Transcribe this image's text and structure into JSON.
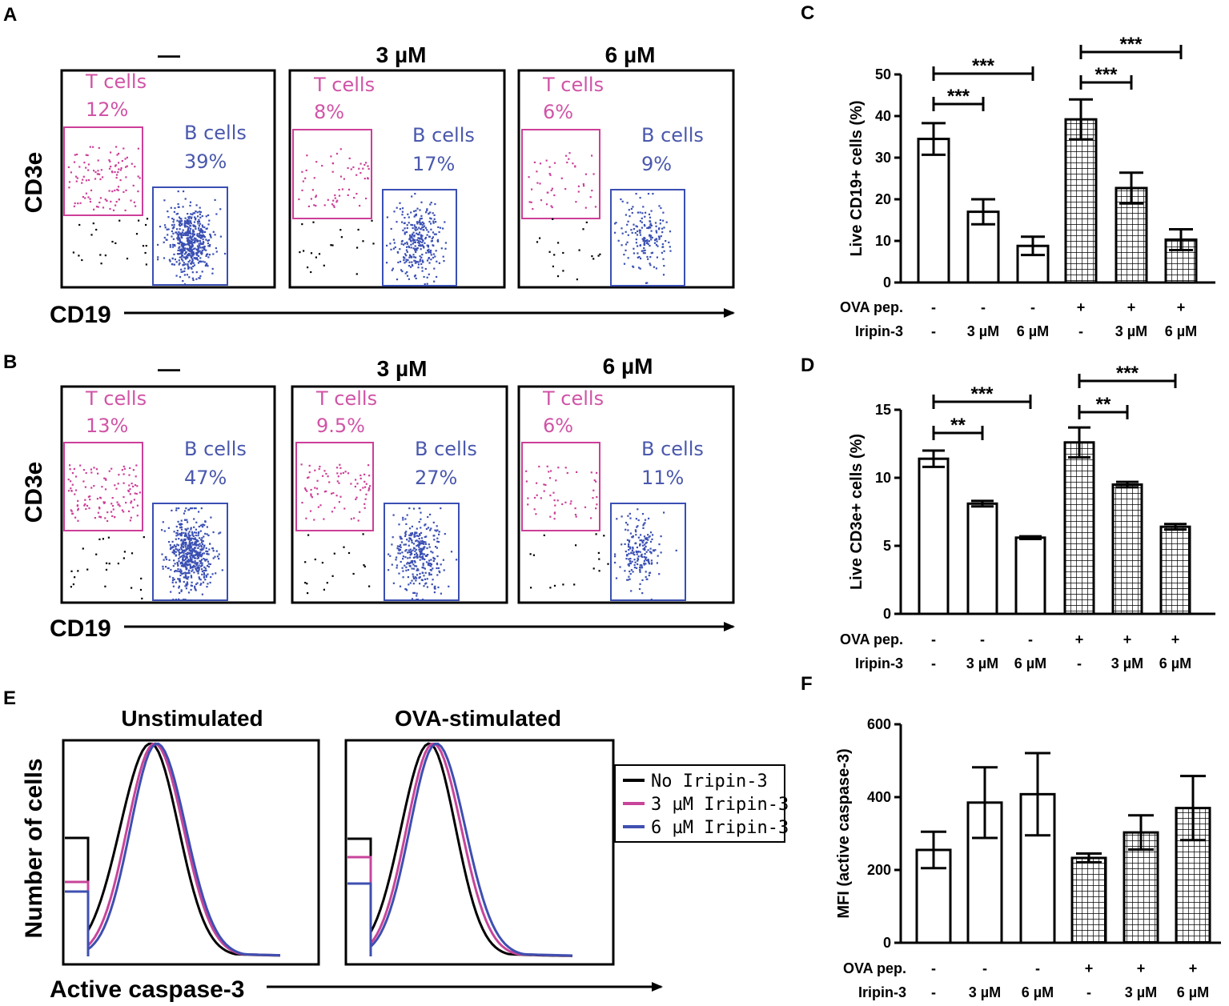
{
  "panel_letters": {
    "A": "A",
    "B": "B",
    "C": "C",
    "D": "D",
    "E": "E",
    "F": "F"
  },
  "flow": {
    "y_label": "CD3e",
    "x_label": "CD19",
    "t_label": "T cells",
    "b_label": "B cells",
    "titles": [
      "—",
      "3 µM",
      "6 µM"
    ],
    "rowA": {
      "t_pct": [
        "12%",
        "8%",
        "6%"
      ],
      "b_pct": [
        "39%",
        "17%",
        "9%"
      ]
    },
    "rowB": {
      "t_pct": [
        "13%",
        "9.5%",
        "6%"
      ],
      "b_pct": [
        "47%",
        "27%",
        "11%"
      ]
    }
  },
  "hist": {
    "titles": [
      "Unstimulated",
      "OVA-stimulated"
    ],
    "y_label": "Number of cells",
    "x_label": "Active caspase-3",
    "legend": [
      "No Iripin-3",
      "3 µM Iripin-3",
      "6 µM Iripin-3"
    ],
    "colors": [
      "#000000",
      "#c8449a",
      "#3f4fb0"
    ]
  },
  "colors": {
    "t_gate": "#cc3f98",
    "b_gate": "#3a4fb3",
    "b_text": "#4a58ad",
    "t_text": "#d054a6"
  },
  "chart_data": [
    {
      "type": "bar",
      "panel": "C",
      "ylabel": "Live CD19+ cells (%)",
      "ylim": [
        0,
        50
      ],
      "yticks": [
        "0",
        "10",
        "20",
        "30",
        "40",
        "50"
      ],
      "values": [
        34.5,
        17,
        8.8,
        39.2,
        22.7,
        10.3
      ],
      "errors": [
        3.8,
        3,
        2.2,
        4.8,
        3.7,
        2.5
      ],
      "hatched": [
        false,
        false,
        false,
        true,
        true,
        true
      ],
      "row1_label": "OVA pep.",
      "row2_label": "Iripin-3",
      "row1": [
        "-",
        "-",
        "-",
        "+",
        "+",
        "+"
      ],
      "row2": [
        "-",
        "3 µM",
        "6 µM",
        "-",
        "3 µM",
        "6 µM"
      ],
      "significance": [
        {
          "from": 0,
          "to": 1,
          "label": "***",
          "level": 1
        },
        {
          "from": 0,
          "to": 2,
          "label": "***",
          "level": 2
        },
        {
          "from": 3,
          "to": 4,
          "label": "***",
          "level": 1
        },
        {
          "from": 3,
          "to": 5,
          "label": "***",
          "level": 2
        }
      ]
    },
    {
      "type": "bar",
      "panel": "D",
      "ylabel": "Live CD3e+ cells (%)",
      "ylim": [
        0,
        15
      ],
      "yticks": [
        "0",
        "5",
        "10",
        "15"
      ],
      "values": [
        11.4,
        8.1,
        5.6,
        12.6,
        9.5,
        6.4
      ],
      "errors": [
        0.6,
        0.2,
        0.1,
        1.1,
        0.2,
        0.2
      ],
      "hatched": [
        false,
        false,
        false,
        true,
        true,
        true
      ],
      "row1_label": "OVA pep.",
      "row2_label": "Iripin-3",
      "row1": [
        "-",
        "-",
        "-",
        "+",
        "+",
        "+"
      ],
      "row2": [
        "-",
        "3 µM",
        "6 µM",
        "-",
        "3 µM",
        "6 µM"
      ],
      "significance": [
        {
          "from": 0,
          "to": 1,
          "label": "**",
          "level": 1
        },
        {
          "from": 0,
          "to": 2,
          "label": "***",
          "level": 2
        },
        {
          "from": 3,
          "to": 4,
          "label": "**",
          "level": 1
        },
        {
          "from": 3,
          "to": 5,
          "label": "***",
          "level": 2
        }
      ]
    },
    {
      "type": "bar",
      "panel": "F",
      "ylabel": "MFI (active caspase-3)",
      "ylim": [
        0,
        600
      ],
      "yticks": [
        "0",
        "200",
        "400",
        "600"
      ],
      "values": [
        255,
        385,
        408,
        233,
        303,
        370
      ],
      "errors": [
        50,
        97,
        113,
        12,
        47,
        88
      ],
      "hatched": [
        false,
        false,
        false,
        true,
        true,
        true
      ],
      "row1_label": "OVA pep.",
      "row2_label": "Iripin-3",
      "row1": [
        "-",
        "-",
        "-",
        "+",
        "+",
        "+"
      ],
      "row2": [
        "-",
        "3 µM",
        "6 µM",
        "-",
        "3 µM",
        "6 µM"
      ],
      "significance": []
    }
  ]
}
